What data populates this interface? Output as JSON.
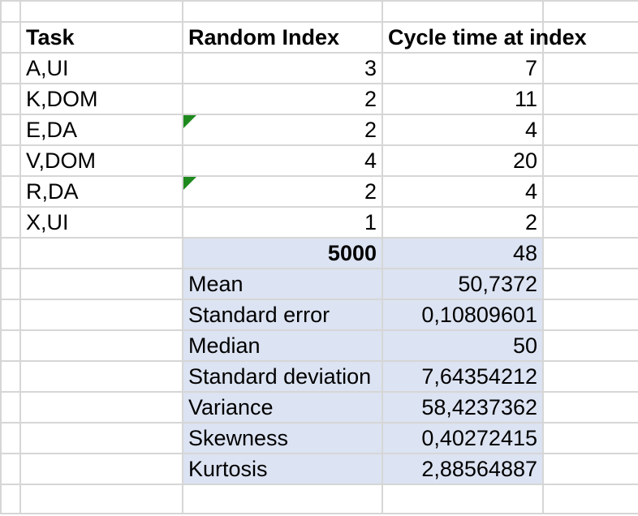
{
  "sheet": {
    "headers": {
      "task": "Task",
      "random_index": "Random Index",
      "cycle_time": "Cycle time at index"
    },
    "rows": [
      {
        "task": "A,UI",
        "random_index": "3",
        "cycle_time": "7",
        "has_note": false
      },
      {
        "task": "K,DOM",
        "random_index": "2",
        "cycle_time": "11",
        "has_note": false
      },
      {
        "task": "E,DA",
        "random_index": "2",
        "cycle_time": "4",
        "has_note": true
      },
      {
        "task": "V,DOM",
        "random_index": "4",
        "cycle_time": "20",
        "has_note": false
      },
      {
        "task": "R,DA",
        "random_index": "2",
        "cycle_time": "4",
        "has_note": true
      },
      {
        "task": "X,UI",
        "random_index": "1",
        "cycle_time": "2",
        "has_note": false
      }
    ],
    "summary_head": {
      "label": "5000",
      "value": "48"
    },
    "stats": [
      {
        "label": "Mean",
        "value": "50,7372"
      },
      {
        "label": "Standard error",
        "value": "0,10809601"
      },
      {
        "label": "Median",
        "value": "50"
      },
      {
        "label": "Standard deviation",
        "value": "7,64354212"
      },
      {
        "label": "Variance",
        "value": "58,4237362"
      },
      {
        "label": "Skewness",
        "value": "0,40272415"
      },
      {
        "label": "Kurtosis",
        "value": "2,88564887"
      }
    ],
    "colors": {
      "highlight": "#dce3f2",
      "gridline": "#d6d6d6",
      "note_marker": "#1e8a1e"
    }
  }
}
